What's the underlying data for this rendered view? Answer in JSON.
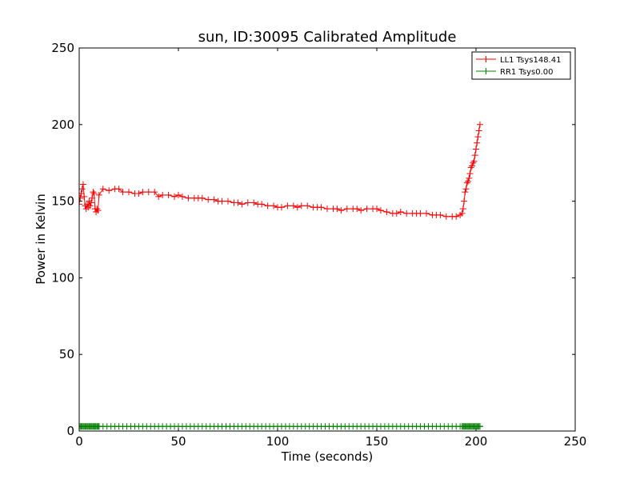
{
  "chart_data": {
    "type": "line",
    "title": "sun, ID:30095 Calibrated Amplitude",
    "xlabel": "Time (seconds)",
    "ylabel": "Power in Kelvin",
    "xlim": [
      0,
      250
    ],
    "ylim": [
      0,
      250
    ],
    "xticks": [
      "0",
      "50",
      "100",
      "150",
      "200",
      "250"
    ],
    "yticks": [
      "0",
      "50",
      "100",
      "150",
      "200",
      "250"
    ],
    "grid": false,
    "legend_position": "top-right",
    "series": [
      {
        "name": "LL1 Tsys148.41",
        "color": "#ff0000",
        "marker": "plus",
        "x": [
          0.0,
          0.5,
          1.0,
          1.5,
          2.0,
          2.5,
          3.0,
          3.5,
          4.0,
          4.5,
          5.0,
          5.5,
          6.0,
          6.5,
          7.0,
          7.5,
          8.0,
          8.5,
          9.0,
          9.5,
          10.0,
          12.0,
          15.0,
          18.0,
          20.0,
          22.0,
          25.0,
          28.0,
          30.0,
          32.0,
          35.0,
          38.0,
          40.0,
          42.0,
          45.0,
          48.0,
          50.0,
          52.0,
          55.0,
          58.0,
          60.0,
          62.0,
          65.0,
          68.0,
          70.0,
          72.0,
          75.0,
          78.0,
          80.0,
          82.0,
          85.0,
          88.0,
          90.0,
          92.0,
          95.0,
          98.0,
          100.0,
          102.0,
          105.0,
          108.0,
          110.0,
          112.0,
          115.0,
          118.0,
          120.0,
          122.0,
          125.0,
          128.0,
          130.0,
          132.0,
          135.0,
          138.0,
          140.0,
          142.0,
          145.0,
          148.0,
          150.0,
          152.0,
          155.0,
          158.0,
          160.0,
          162.0,
          165.0,
          168.0,
          170.0,
          172.0,
          175.0,
          178.0,
          180.0,
          182.0,
          185.0,
          188.0,
          190.0,
          192.0,
          193.0,
          193.5,
          194.0,
          194.5,
          195.0,
          195.5,
          196.0,
          196.5,
          197.0,
          197.5,
          198.0,
          198.5,
          199.0,
          199.5,
          200.0,
          200.5,
          201.0,
          201.5,
          202.0
        ],
        "y": [
          148,
          152,
          155,
          158,
          161,
          153,
          147,
          145,
          148,
          146,
          150,
          147,
          149,
          152,
          156,
          155,
          145,
          143,
          145,
          144,
          154,
          158,
          157,
          158,
          158,
          156,
          156,
          155,
          155,
          156,
          156,
          156,
          153,
          154,
          154,
          153,
          154,
          153,
          152,
          152,
          152,
          152,
          151,
          151,
          150,
          150,
          150,
          149,
          149,
          148,
          149,
          149,
          148,
          148,
          147,
          147,
          146,
          146,
          147,
          147,
          146,
          147,
          147,
          146,
          146,
          146,
          145,
          145,
          145,
          144,
          145,
          145,
          145,
          144,
          145,
          145,
          145,
          144,
          143,
          142,
          142,
          143,
          142,
          142,
          142,
          142,
          142,
          141,
          141,
          141,
          140,
          140,
          140,
          141,
          142,
          145,
          150,
          156,
          158,
          162,
          163,
          165,
          168,
          172,
          173,
          175,
          176,
          180,
          184,
          188,
          192,
          196,
          200
        ]
      },
      {
        "name": "RR1 Tsys0.00",
        "color": "#008000",
        "marker": "plus",
        "x_start": 0,
        "x_end": 202,
        "x_step": 2,
        "y_constant": 3
      }
    ]
  }
}
